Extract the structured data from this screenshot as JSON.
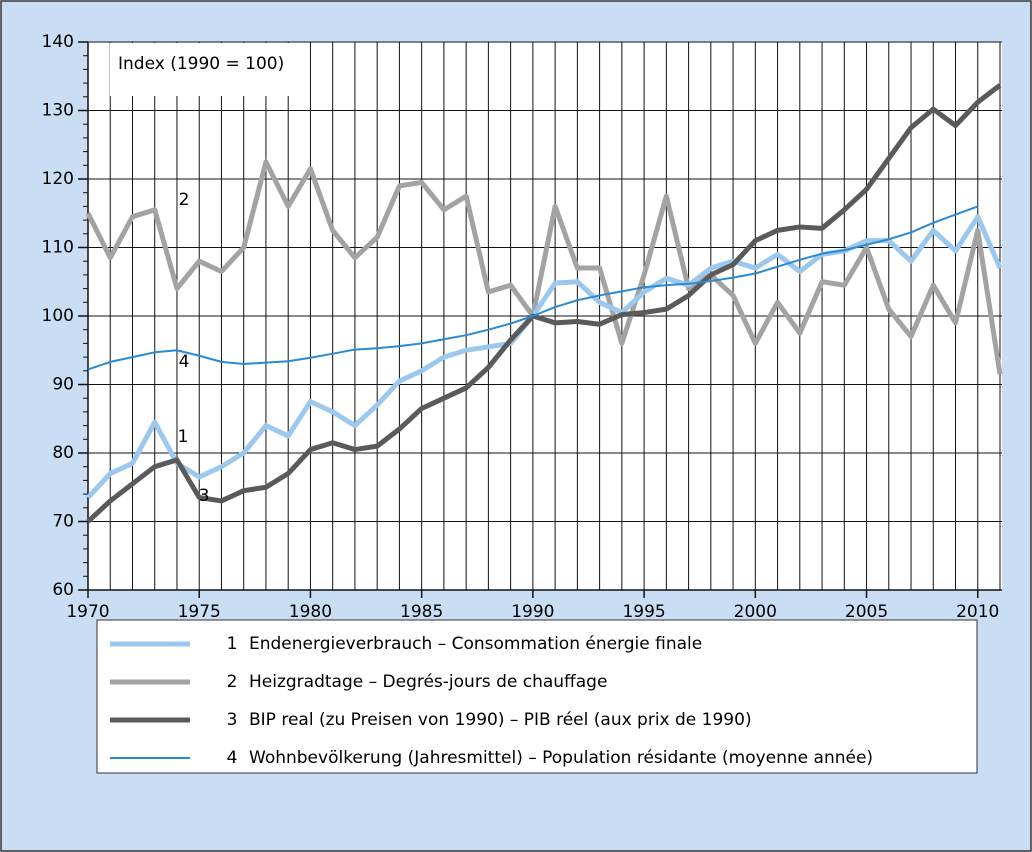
{
  "chart_data": {
    "type": "line",
    "annotation": "Index (1990 = 100)",
    "x": [
      1970,
      1971,
      1972,
      1973,
      1974,
      1975,
      1976,
      1977,
      1978,
      1979,
      1980,
      1981,
      1982,
      1983,
      1984,
      1985,
      1986,
      1987,
      1988,
      1989,
      1990,
      1991,
      1992,
      1993,
      1994,
      1995,
      1996,
      1997,
      1998,
      1999,
      2000,
      2001,
      2002,
      2003,
      2004,
      2005,
      2006,
      2007,
      2008,
      2009,
      2010,
      2011
    ],
    "xlim": [
      1970,
      2011
    ],
    "xticks": [
      1970,
      1975,
      1980,
      1985,
      1990,
      1995,
      2000,
      2005,
      2010
    ],
    "ylim": [
      60,
      140
    ],
    "yticks": [
      60,
      70,
      80,
      90,
      100,
      110,
      120,
      130,
      140
    ],
    "grid": true,
    "series": [
      {
        "label": "1",
        "name": "Endenergieverbrauch – Consommation énergie finale",
        "color": "#9cc8ee",
        "width": 5,
        "values": [
          73.5,
          77,
          78.5,
          84.5,
          78.5,
          76.5,
          78,
          80,
          84,
          82.5,
          87.5,
          86,
          84,
          87,
          90.5,
          92,
          94,
          95,
          95.5,
          96,
          100,
          104.8,
          105,
          102,
          100.5,
          103.5,
          105.5,
          104.5,
          107,
          108,
          107,
          109,
          106.5,
          109,
          109.5,
          111,
          111,
          108,
          112.5,
          109.5,
          114.5,
          107
        ]
      },
      {
        "label": "2",
        "name": "Heizgradtage – Degrés-jours de chauffage",
        "color": "#a3a3a3",
        "width": 5,
        "values": [
          115,
          108.5,
          114.5,
          115.5,
          104,
          108,
          106.5,
          110,
          122.5,
          116,
          121.5,
          112.5,
          108.5,
          111.5,
          119,
          119.5,
          115.5,
          117.5,
          103.5,
          104.5,
          100,
          116,
          107,
          107,
          96,
          106,
          117.5,
          104,
          106,
          103,
          96,
          102,
          97.5,
          105,
          104.5,
          110,
          101,
          97,
          104.5,
          99,
          112.5,
          91.5
        ]
      },
      {
        "label": "3",
        "name": "BIP real (zu Preisen von 1990) – PIB réel (aux prix de 1990)",
        "color": "#5a5a5a",
        "width": 5,
        "values": [
          70,
          73,
          75.5,
          78,
          79,
          73.5,
          73,
          74.5,
          75,
          77,
          80.5,
          81.5,
          80.5,
          81,
          83.5,
          86.5,
          88,
          89.5,
          92.5,
          96.5,
          100,
          99,
          99.2,
          98.8,
          100.2,
          100.5,
          101,
          103,
          106,
          107.5,
          111,
          112.5,
          113,
          112.8,
          115.5,
          118.5,
          123,
          127.5,
          130.2,
          127.8,
          131.2,
          133.7
        ]
      },
      {
        "label": "4",
        "name": "Wohnbevölkerung (Jahresmittel) – Population résidante (moyenne année)",
        "color": "#2a8ad4",
        "width": 2,
        "values": [
          92.2,
          93.3,
          94,
          94.7,
          95,
          94.2,
          93.3,
          93,
          93.2,
          93.4,
          93.9,
          94.5,
          95.1,
          95.3,
          95.6,
          96,
          96.6,
          97.2,
          98,
          98.9,
          100,
          101.3,
          102.3,
          103,
          103.6,
          104.2,
          104.5,
          104.7,
          105.1,
          105.6,
          106.2,
          107.2,
          108.2,
          109.1,
          109.6,
          110.4,
          111.2,
          112.2,
          113.6,
          114.8,
          116,
          null
        ]
      }
    ]
  }
}
